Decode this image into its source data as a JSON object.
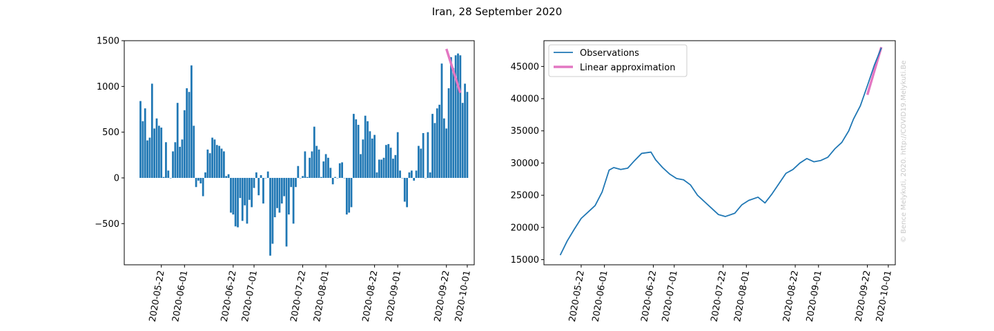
{
  "figure_title": "Iran, 28 September 2020",
  "watermark": "© Bence Melykuti, 2020. http://COVID19.Melykuti.Be",
  "colors": {
    "bars": "#1f77b4",
    "observations": "#1f77b4",
    "approximation": "#e377c2"
  },
  "chart_data": [
    {
      "type": "bar",
      "title": "",
      "xlabel": "",
      "ylabel": "",
      "start_date": "2020-05-13",
      "ylim": [
        -950,
        1500
      ],
      "xlim": [
        "2020-05-06",
        "2020-10-04"
      ],
      "yticks": [
        -500,
        0,
        500,
        1000,
        1500
      ],
      "yticklabels": [
        "−500",
        "0",
        "500",
        "1000",
        "1500"
      ],
      "xticks": [
        "2020-05-22",
        "2020-06-01",
        "2020-06-22",
        "2020-07-01",
        "2020-07-22",
        "2020-08-01",
        "2020-08-22",
        "2020-09-01",
        "2020-09-22",
        "2020-10-01"
      ],
      "values": [
        840,
        620,
        760,
        410,
        440,
        1030,
        540,
        650,
        570,
        550,
        10,
        390,
        80,
        0,
        290,
        390,
        820,
        340,
        420,
        740,
        980,
        940,
        1230,
        570,
        -100,
        -30,
        -60,
        -200,
        60,
        310,
        270,
        440,
        420,
        360,
        350,
        320,
        290,
        20,
        40,
        -380,
        -400,
        -530,
        -540,
        -220,
        -470,
        -300,
        -500,
        -240,
        -320,
        -110,
        60,
        -190,
        30,
        -280,
        0,
        70,
        -850,
        -720,
        -430,
        -330,
        -380,
        -280,
        -200,
        -750,
        -400,
        -100,
        -500,
        -100,
        130,
        0,
        20,
        290,
        10,
        220,
        290,
        560,
        350,
        310,
        10,
        180,
        260,
        220,
        110,
        -70,
        10,
        0,
        160,
        170,
        0,
        -400,
        -380,
        -320,
        700,
        640,
        580,
        260,
        420,
        680,
        620,
        510,
        430,
        470,
        60,
        200,
        200,
        220,
        360,
        370,
        330,
        210,
        250,
        500,
        80,
        0,
        -260,
        -320,
        60,
        80,
        -30,
        80,
        350,
        320,
        490,
        0,
        500,
        60,
        700,
        600,
        760,
        800,
        1250,
        650,
        540,
        980,
        1320,
        1200,
        1340,
        1360,
        1340,
        820,
        1030,
        940
      ],
      "series": [
        {
          "name": "",
          "x": [
            "2020-09-22",
            "2020-09-28"
          ],
          "y": [
            1410,
            930
          ]
        }
      ]
    },
    {
      "type": "line",
      "title": "",
      "xlabel": "",
      "ylabel": "",
      "ylim": [
        14200,
        49000
      ],
      "xlim": [
        "2020-05-06",
        "2020-10-04"
      ],
      "yticks": [
        15000,
        20000,
        25000,
        30000,
        35000,
        40000,
        45000
      ],
      "xticks": [
        "2020-05-22",
        "2020-06-01",
        "2020-06-22",
        "2020-07-01",
        "2020-07-22",
        "2020-08-01",
        "2020-08-22",
        "2020-09-01",
        "2020-09-22",
        "2020-10-01"
      ],
      "legend_position": "upper-left",
      "series": [
        {
          "name": "Observations",
          "x": [
            "2020-05-13",
            "2020-05-16",
            "2020-05-19",
            "2020-05-22",
            "2020-05-25",
            "2020-05-28",
            "2020-05-31",
            "2020-06-03",
            "2020-06-05",
            "2020-06-08",
            "2020-06-11",
            "2020-06-14",
            "2020-06-17",
            "2020-06-21",
            "2020-06-23",
            "2020-06-26",
            "2020-06-29",
            "2020-07-02",
            "2020-07-05",
            "2020-07-08",
            "2020-07-11",
            "2020-07-14",
            "2020-07-17",
            "2020-07-20",
            "2020-07-23",
            "2020-07-27",
            "2020-07-30",
            "2020-08-02",
            "2020-08-06",
            "2020-08-09",
            "2020-08-12",
            "2020-08-15",
            "2020-08-18",
            "2020-08-21",
            "2020-08-24",
            "2020-08-27",
            "2020-08-30",
            "2020-09-02",
            "2020-09-05",
            "2020-09-08",
            "2020-09-11",
            "2020-09-14",
            "2020-09-16",
            "2020-09-19",
            "2020-09-22",
            "2020-09-25",
            "2020-09-28"
          ],
          "y": [
            15700,
            17900,
            19700,
            21400,
            22400,
            23400,
            25500,
            28900,
            29300,
            29000,
            29200,
            30400,
            31500,
            31700,
            30500,
            29300,
            28300,
            27600,
            27400,
            26600,
            25000,
            24000,
            23000,
            22000,
            21700,
            22200,
            23500,
            24200,
            24700,
            23800,
            25200,
            26800,
            28400,
            29000,
            30000,
            30700,
            30200,
            30400,
            30900,
            32200,
            33200,
            35000,
            36800,
            38900,
            42000,
            45200,
            47900
          ]
        },
        {
          "name": "Linear approximation",
          "x": [
            "2020-09-22",
            "2020-09-28"
          ],
          "y": [
            40600,
            48000
          ]
        }
      ]
    }
  ]
}
